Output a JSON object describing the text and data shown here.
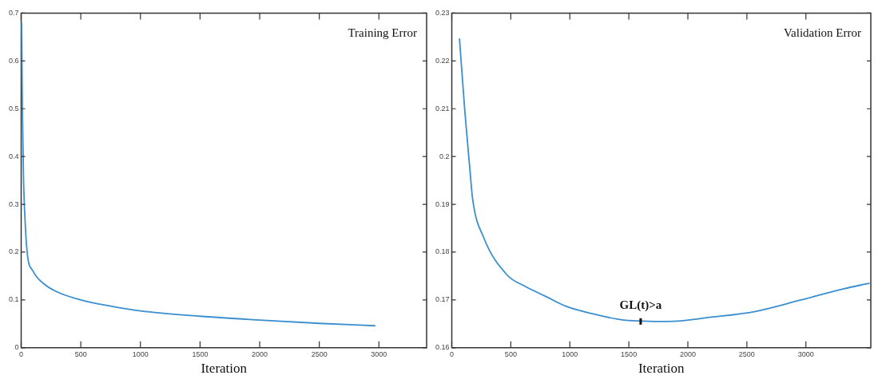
{
  "chart_data": [
    {
      "type": "line",
      "xlabel": "Iteration",
      "annotations": [
        "Training Error"
      ],
      "x": [
        4,
        10,
        20,
        30,
        50,
        100,
        200,
        300,
        500,
        750,
        1000,
        1500,
        2000,
        2500,
        2970
      ],
      "series": [
        {
          "color": "#3a8fd0",
          "values": [
            0.68,
            0.5,
            0.35,
            0.28,
            0.2,
            0.16,
            0.132,
            0.117,
            0.1,
            0.087,
            0.077,
            0.066,
            0.058,
            0.051,
            0.046
          ]
        }
      ],
      "xlim": [
        0,
        3400
      ],
      "xticks": [
        0,
        500,
        1000,
        1500,
        2000,
        2500,
        3000
      ],
      "ylim": [
        0,
        0.7
      ],
      "yticks": [
        0,
        0.1,
        0.2,
        0.3,
        0.4,
        0.5,
        0.6,
        0.7
      ],
      "grid": false,
      "legend": false
    },
    {
      "type": "line",
      "xlabel": "Iteration",
      "annotations": [
        "Validation Error",
        {
          "text": "GL(t)>a",
          "x": 1600,
          "y": 0.1655
        }
      ],
      "x": [
        65,
        110,
        152,
        176,
        271,
        469,
        617,
        791,
        964,
        1211,
        1459,
        1830,
        2201,
        2572,
        2944,
        3315,
        3540
      ],
      "series": [
        {
          "color": "#3a8fd0",
          "values": [
            0.2247,
            0.2096,
            0.1977,
            0.1912,
            0.183,
            0.1752,
            0.1729,
            0.1708,
            0.1687,
            0.167,
            0.1658,
            0.1655,
            0.1664,
            0.1676,
            0.1699,
            0.1723,
            0.1735
          ]
        }
      ],
      "xlim": [
        0,
        3550
      ],
      "xticks": [
        0,
        500,
        1000,
        1500,
        2000,
        2500,
        3000
      ],
      "ylim": [
        0.16,
        0.23
      ],
      "yticks": [
        0.16,
        0.17,
        0.18,
        0.19,
        0.2,
        0.21,
        0.22,
        0.23
      ],
      "grid": false,
      "legend": false
    }
  ]
}
